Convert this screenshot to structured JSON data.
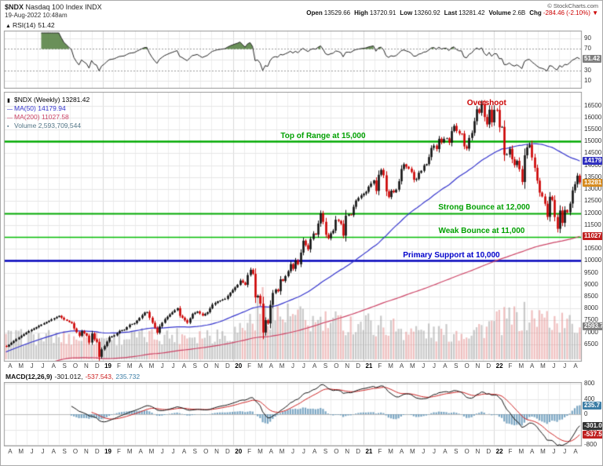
{
  "header": {
    "symbol": "$NDX",
    "name": "Nasdaq 100 Index",
    "exchange": "INDX",
    "datetime": "19-Aug-2022 10:48am",
    "copyright": "© StockCharts.com",
    "quote": [
      {
        "label": "Open",
        "value": "13529.66"
      },
      {
        "label": "High",
        "value": "13720.91"
      },
      {
        "label": "Low",
        "value": "13260.92"
      },
      {
        "label": "Last",
        "value": "13281.42"
      },
      {
        "label": "Volume",
        "value": "2.6B"
      },
      {
        "label": "Chg",
        "value": "-284.46 (-2.10%) ▼",
        "color": "#cc0000"
      }
    ]
  },
  "rsi_panel": {
    "label": "RSI(14)",
    "value": "51.42",
    "current": 51.42
  },
  "rsi_box": {
    "text": "51.42",
    "bg": "#808080"
  },
  "main_legend": {
    "symbol": "$NDX (Weekly) 13281.42",
    "ma50": "MA(50) 14179.94",
    "ma200": "MA(200) 11027.58",
    "volume": "Volume 2,593,709,544"
  },
  "price_boxes": [
    {
      "text": "14179",
      "bg": "#3030c0",
      "price": 14179.94
    },
    {
      "text": "13281",
      "bg": "#d78b1e",
      "price": 13281.42
    },
    {
      "text": "11027",
      "bg": "#c02020",
      "price": 11027.58
    }
  ],
  "volume_box": {
    "text": "2593.7",
    "bg": "#808080"
  },
  "annotations": [
    {
      "text": "Overshoot",
      "color": "#cc0000",
      "week": 191,
      "price": 16420
    },
    {
      "text": "Top of Range at 15,000",
      "color": "#00a000",
      "week": 126,
      "price": 15050
    },
    {
      "text": "Strong Bounce at 12,000",
      "color": "#00a000",
      "week": 190,
      "price": 12050
    },
    {
      "text": "Weak Bounce at 11,000",
      "color": "#00a000",
      "week": 189,
      "price": 11050
    },
    {
      "text": "Primary Support at 10,000",
      "color": "#0000cc",
      "week": 177,
      "price": 10050
    }
  ],
  "macd_legend": {
    "label": "MACD(12,26,9)",
    "macd": "-301.012,",
    "signal": "-537.543,",
    "hist": "235.732"
  },
  "macd_boxes": [
    {
      "text": "235.7",
      "bg": "#3d7ea6",
      "v": 235.7
    },
    {
      "text": "-301.0",
      "bg": "#333333",
      "v": -301.012
    },
    {
      "text": "-537.5",
      "bg": "#c02020",
      "v": -537.543
    }
  ],
  "chart_data": {
    "type": "candlestick",
    "symbol": "$NDX",
    "timeframe": "Weekly",
    "date_range": "Apr-2018 to 19-Aug-2022",
    "title": "$NDX Nasdaq 100 Index (Weekly) with RSI(14) and MACD(12,26,9)",
    "ylim": [
      5900,
      16950
    ],
    "price_ticks": [
      16500,
      16000,
      15500,
      15000,
      14500,
      14000,
      13500,
      13000,
      12500,
      12000,
      11500,
      11000,
      10500,
      10000,
      9500,
      9000,
      8500,
      8000,
      7500,
      7000,
      6500
    ],
    "rsi_ticks": [
      90,
      70,
      50,
      30,
      10
    ],
    "macd_ticks": [
      800,
      400,
      0,
      -400,
      -800
    ],
    "ohlc_last": {
      "open": 13529.66,
      "high": 13720.91,
      "low": 13260.92,
      "close": 13281.42,
      "volume": "2.6B",
      "change": "-284.46 (-2.10%)"
    },
    "overlays": {
      "ma50": 14179.94,
      "ma200": 11027.58,
      "volume": "2,593,709,544"
    },
    "indicators": {
      "rsi14": 51.42,
      "macd_line": -301.012,
      "macd_signal": -537.543,
      "macd_hist": 235.732
    },
    "horizontal_lines": [
      {
        "price": 15000,
        "color": "#00aa00",
        "w": 2.5,
        "label": "Top of Range at 15,000"
      },
      {
        "price": 12000,
        "color": "#00aa00",
        "w": 2,
        "label": "Strong Bounce at 12,000"
      },
      {
        "price": 11000,
        "color": "#00bb00",
        "w": 1.5,
        "label": "Weak Bounce at 11,000"
      },
      {
        "price": 10000,
        "color": "#0000bb",
        "w": 2.5,
        "label": "Primary Support at 10,000"
      }
    ],
    "weeks_total": 229,
    "note": "price_anchors are [week_index, weekly_close] estimates read from the chart; week 0 = Apr-2018, week 228 = 19-Aug-2022",
    "price_anchors": [
      [
        0,
        6400
      ],
      [
        2,
        6560
      ],
      [
        5,
        6780
      ],
      [
        9,
        7050
      ],
      [
        13,
        7270
      ],
      [
        18,
        7540
      ],
      [
        21,
        7690
      ],
      [
        23,
        7530
      ],
      [
        26,
        7380
      ],
      [
        27,
        7160
      ],
      [
        29,
        6850
      ],
      [
        30,
        7050
      ],
      [
        32,
        6860
      ],
      [
        33,
        6570
      ],
      [
        34,
        6950
      ],
      [
        35,
        6700
      ],
      [
        36,
        6600
      ],
      [
        37,
        5970
      ],
      [
        38,
        6285
      ],
      [
        39,
        6422
      ],
      [
        41,
        6790
      ],
      [
        43,
        6870
      ],
      [
        45,
        7060
      ],
      [
        47,
        7110
      ],
      [
        49,
        7320
      ],
      [
        51,
        7380
      ],
      [
        53,
        7600
      ],
      [
        55,
        7830
      ],
      [
        56,
        7850
      ],
      [
        57,
        7610
      ],
      [
        60,
        6980
      ],
      [
        61,
        7250
      ],
      [
        63,
        7550
      ],
      [
        65,
        7750
      ],
      [
        68,
        8010
      ],
      [
        69,
        7690
      ],
      [
        70,
        7610
      ],
      [
        72,
        7400
      ],
      [
        74,
        7770
      ],
      [
        76,
        7870
      ],
      [
        78,
        7700
      ],
      [
        80,
        7840
      ],
      [
        82,
        8160
      ],
      [
        84,
        8300
      ],
      [
        87,
        8400
      ],
      [
        89,
        8660
      ],
      [
        90,
        8770
      ],
      [
        92,
        8990
      ],
      [
        93,
        9170
      ],
      [
        95,
        8990
      ],
      [
        96,
        9400
      ],
      [
        97,
        9620
      ],
      [
        98,
        9450
      ],
      [
        99,
        8460
      ],
      [
        100,
        8530
      ],
      [
        101,
        8200
      ],
      [
        102,
        6990
      ],
      [
        103,
        7510
      ],
      [
        104,
        7370
      ],
      [
        105,
        8150
      ],
      [
        106,
        8650
      ],
      [
        107,
        8790
      ],
      [
        108,
        8720
      ],
      [
        109,
        9220
      ],
      [
        110,
        9150
      ],
      [
        112,
        9560
      ],
      [
        113,
        9860
      ],
      [
        114,
        9660
      ],
      [
        115,
        10010
      ],
      [
        116,
        9850
      ],
      [
        117,
        10340
      ],
      [
        118,
        10840
      ],
      [
        119,
        10650
      ],
      [
        120,
        10480
      ],
      [
        121,
        10910
      ],
      [
        122,
        11140
      ],
      [
        123,
        11090
      ],
      [
        124,
        11560
      ],
      [
        125,
        11990
      ],
      [
        126,
        11630
      ],
      [
        127,
        11090
      ],
      [
        128,
        10940
      ],
      [
        129,
        11150
      ],
      [
        130,
        11260
      ],
      [
        131,
        11720
      ],
      [
        132,
        11670
      ],
      [
        133,
        11550
      ],
      [
        134,
        11050
      ],
      [
        135,
        11890
      ],
      [
        136,
        11940
      ],
      [
        137,
        11910
      ],
      [
        138,
        12260
      ],
      [
        139,
        12520
      ],
      [
        141,
        12740
      ],
      [
        143,
        12888
      ],
      [
        144,
        13105
      ],
      [
        146,
        13366
      ],
      [
        147,
        12925
      ],
      [
        148,
        13603
      ],
      [
        149,
        13807
      ],
      [
        150,
        13580
      ],
      [
        151,
        12909
      ],
      [
        152,
        12668
      ],
      [
        153,
        12937
      ],
      [
        154,
        12867
      ],
      [
        155,
        12979
      ],
      [
        156,
        13330
      ],
      [
        157,
        13845
      ],
      [
        158,
        14041
      ],
      [
        159,
        13941
      ],
      [
        160,
        13860
      ],
      [
        161,
        13719
      ],
      [
        162,
        13393
      ],
      [
        163,
        13427
      ],
      [
        164,
        13686
      ],
      [
        165,
        13770
      ],
      [
        166,
        14000
      ],
      [
        167,
        14050
      ],
      [
        168,
        14345
      ],
      [
        169,
        14727
      ],
      [
        170,
        14826
      ],
      [
        171,
        14681
      ],
      [
        172,
        15112
      ],
      [
        173,
        14960
      ],
      [
        174,
        15110
      ],
      [
        175,
        15130
      ],
      [
        176,
        14945
      ],
      [
        177,
        15433
      ],
      [
        178,
        15653
      ],
      [
        179,
        15440
      ],
      [
        180,
        15333
      ],
      [
        181,
        15330
      ],
      [
        182,
        14792
      ],
      [
        183,
        14700
      ],
      [
        184,
        15147
      ],
      [
        185,
        15355
      ],
      [
        186,
        15850
      ],
      [
        187,
        16350
      ],
      [
        188,
        16200
      ],
      [
        189,
        16573
      ],
      [
        190,
        16025
      ],
      [
        191,
        15713
      ],
      [
        192,
        16332
      ],
      [
        193,
        15801
      ],
      [
        194,
        16326
      ],
      [
        195,
        16320
      ],
      [
        196,
        15592
      ],
      [
        197,
        15611
      ],
      [
        198,
        14438
      ],
      [
        199,
        14454
      ],
      [
        200,
        14694
      ],
      [
        201,
        14254
      ],
      [
        202,
        14009
      ],
      [
        203,
        14189
      ],
      [
        204,
        13838
      ],
      [
        205,
        13301
      ],
      [
        206,
        14420
      ],
      [
        207,
        14754
      ],
      [
        208,
        14861
      ],
      [
        209,
        14328
      ],
      [
        210,
        13893
      ],
      [
        211,
        13357
      ],
      [
        212,
        12855
      ],
      [
        213,
        12693
      ],
      [
        214,
        12388
      ],
      [
        215,
        11836
      ],
      [
        216,
        12681
      ],
      [
        217,
        12548
      ],
      [
        218,
        11832
      ],
      [
        219,
        11338
      ],
      [
        220,
        12105
      ],
      [
        221,
        11586
      ],
      [
        222,
        12126
      ],
      [
        223,
        12030
      ],
      [
        224,
        12396
      ],
      [
        225,
        12948
      ],
      [
        226,
        13207
      ],
      [
        227,
        13566
      ],
      [
        228,
        13281.42
      ]
    ],
    "volume_anchors": [
      [
        0,
        1.8
      ],
      [
        40,
        1.7
      ],
      [
        60,
        1.9
      ],
      [
        90,
        2.1
      ],
      [
        99,
        3.4
      ],
      [
        102,
        4.6
      ],
      [
        106,
        3.6
      ],
      [
        115,
        3.4
      ],
      [
        120,
        3.0
      ],
      [
        130,
        2.9
      ],
      [
        143,
        2.9
      ],
      [
        155,
        2.6
      ],
      [
        160,
        2.3
      ],
      [
        175,
        2.1
      ],
      [
        185,
        2.3
      ],
      [
        196,
        3.0
      ],
      [
        205,
        3.4
      ],
      [
        215,
        3.3
      ],
      [
        222,
        2.9
      ],
      [
        228,
        2.59
      ]
    ],
    "x_months": [
      "A",
      "M",
      "J",
      "J",
      "A",
      "S",
      "O",
      "N",
      "D",
      "19",
      "F",
      "M",
      "A",
      "M",
      "J",
      "J",
      "A",
      "S",
      "O",
      "N",
      "D",
      "20",
      "F",
      "M",
      "A",
      "M",
      "J",
      "J",
      "A",
      "S",
      "O",
      "N",
      "D",
      "21",
      "F",
      "M",
      "A",
      "M",
      "J",
      "J",
      "A",
      "S",
      "O",
      "N",
      "D",
      "22",
      "F",
      "M",
      "A",
      "M",
      "J",
      "J",
      "A"
    ]
  }
}
